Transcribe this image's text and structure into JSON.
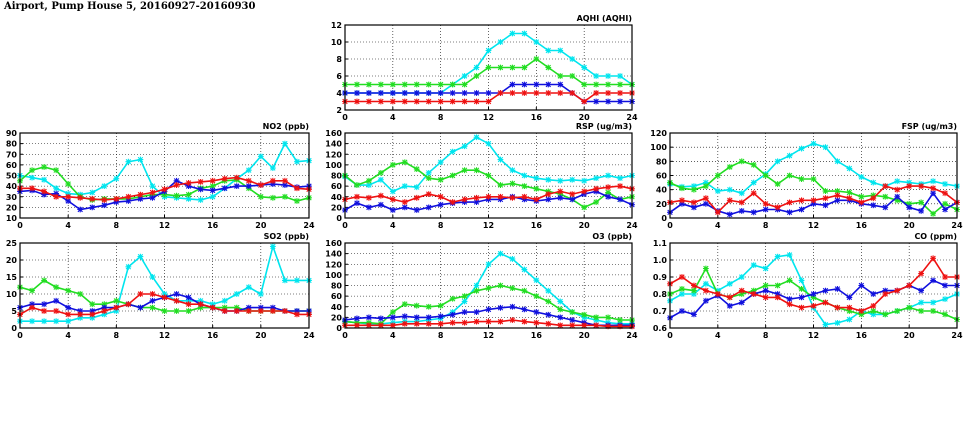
{
  "page": {
    "title": "Airport, Pump House 5, 20160927-20160930"
  },
  "colors": {
    "cyan": "#00e5ee",
    "green": "#22dd22",
    "blue": "#1010dd",
    "red": "#ee1111",
    "grid": "#000000"
  },
  "chart_data": [
    {
      "id": "aqhi",
      "type": "line",
      "title": "AQHI (AQHI)",
      "xlim": [
        0,
        24
      ],
      "ylim": [
        2,
        12
      ],
      "xticks": [
        "0",
        "4",
        "8",
        "12",
        "16",
        "20",
        "24"
      ],
      "yticks": [
        "2",
        "4",
        "6",
        "8",
        "10",
        "12"
      ],
      "x": [
        0,
        1,
        2,
        3,
        4,
        5,
        6,
        7,
        8,
        9,
        10,
        11,
        12,
        13,
        14,
        15,
        16,
        17,
        18,
        19,
        20,
        21,
        22,
        23,
        24
      ],
      "series": [
        {
          "color": "cyan",
          "values": [
            4,
            4,
            4,
            4,
            4,
            4,
            4,
            4,
            4,
            5,
            6,
            7,
            9,
            10,
            11,
            11,
            10,
            9,
            9,
            8,
            7,
            6,
            6,
            6,
            5
          ]
        },
        {
          "color": "green",
          "values": [
            5,
            5,
            5,
            5,
            5,
            5,
            5,
            5,
            5,
            5,
            5,
            6,
            7,
            7,
            7,
            7,
            8,
            7,
            6,
            6,
            5,
            5,
            5,
            5,
            5
          ]
        },
        {
          "color": "blue",
          "values": [
            4,
            4,
            4,
            4,
            4,
            4,
            4,
            4,
            4,
            4,
            4,
            4,
            4,
            4,
            5,
            5,
            5,
            5,
            5,
            4,
            3,
            3,
            3,
            3,
            3
          ]
        },
        {
          "color": "red",
          "values": [
            3,
            3,
            3,
            3,
            3,
            3,
            3,
            3,
            3,
            3,
            3,
            3,
            3,
            4,
            4,
            4,
            4,
            4,
            4,
            4,
            3,
            4,
            4,
            4,
            4
          ]
        }
      ]
    },
    {
      "id": "no2",
      "type": "line",
      "title": "NO2 (ppb)",
      "xlim": [
        0,
        24
      ],
      "ylim": [
        10,
        90
      ],
      "xticks": [
        "0",
        "4",
        "8",
        "12",
        "16",
        "20",
        "24"
      ],
      "yticks": [
        "10",
        "20",
        "30",
        "40",
        "50",
        "60",
        "70",
        "80",
        "90"
      ],
      "x": [
        0,
        1,
        2,
        3,
        4,
        5,
        6,
        7,
        8,
        9,
        10,
        11,
        12,
        13,
        14,
        15,
        16,
        17,
        18,
        19,
        20,
        21,
        22,
        23,
        24
      ],
      "series": [
        {
          "color": "cyan",
          "values": [
            50,
            48,
            46,
            38,
            33,
            32,
            34,
            40,
            47,
            63,
            65,
            40,
            30,
            29,
            28,
            27,
            30,
            38,
            47,
            55,
            68,
            57,
            80,
            63,
            64
          ]
        },
        {
          "color": "green",
          "values": [
            45,
            55,
            58,
            55,
            42,
            30,
            27,
            28,
            28,
            28,
            30,
            32,
            32,
            31,
            32,
            38,
            40,
            45,
            46,
            38,
            30,
            29,
            30,
            26,
            29
          ]
        },
        {
          "color": "blue",
          "values": [
            35,
            36,
            32,
            33,
            26,
            18,
            20,
            22,
            25,
            26,
            28,
            29,
            35,
            45,
            40,
            37,
            36,
            38,
            40,
            40,
            41,
            42,
            41,
            39,
            40
          ]
        },
        {
          "color": "red",
          "values": [
            38,
            38,
            35,
            30,
            30,
            29,
            28,
            27,
            28,
            30,
            32,
            34,
            37,
            41,
            43,
            44,
            45,
            47,
            48,
            45,
            41,
            45,
            45,
            38,
            37
          ]
        }
      ]
    },
    {
      "id": "rsp",
      "type": "line",
      "title": "RSP (ug/m3)",
      "xlim": [
        0,
        24
      ],
      "ylim": [
        0,
        160
      ],
      "xticks": [
        "0",
        "4",
        "8",
        "12",
        "16",
        "20",
        "24"
      ],
      "yticks": [
        "0",
        "20",
        "40",
        "60",
        "80",
        "100",
        "120",
        "140",
        "160"
      ],
      "x": [
        0,
        1,
        2,
        3,
        4,
        5,
        6,
        7,
        8,
        9,
        10,
        11,
        12,
        13,
        14,
        15,
        16,
        17,
        18,
        19,
        20,
        21,
        22,
        23,
        24
      ],
      "series": [
        {
          "color": "cyan",
          "values": [
            78,
            62,
            62,
            72,
            50,
            60,
            58,
            85,
            105,
            125,
            135,
            152,
            140,
            110,
            90,
            80,
            75,
            72,
            70,
            72,
            70,
            75,
            80,
            75,
            80
          ]
        },
        {
          "color": "green",
          "values": [
            80,
            62,
            70,
            85,
            100,
            105,
            92,
            75,
            72,
            80,
            90,
            90,
            80,
            62,
            65,
            60,
            55,
            50,
            45,
            35,
            20,
            30,
            48,
            35,
            40
          ]
        },
        {
          "color": "blue",
          "values": [
            15,
            28,
            20,
            25,
            15,
            20,
            15,
            20,
            25,
            28,
            30,
            30,
            35,
            35,
            40,
            35,
            32,
            35,
            38,
            35,
            45,
            50,
            40,
            35,
            25
          ]
        },
        {
          "color": "red",
          "values": [
            35,
            40,
            38,
            42,
            35,
            30,
            38,
            45,
            40,
            30,
            35,
            38,
            40,
            40,
            38,
            40,
            35,
            45,
            50,
            45,
            50,
            55,
            58,
            60,
            55
          ]
        }
      ]
    },
    {
      "id": "fsp",
      "type": "line",
      "title": "FSP (ug/m3)",
      "xlim": [
        0,
        24
      ],
      "ylim": [
        0,
        120
      ],
      "xticks": [
        "0",
        "4",
        "8",
        "12",
        "16",
        "20",
        "24"
      ],
      "yticks": [
        "0",
        "20",
        "40",
        "60",
        "80",
        "100",
        "120"
      ],
      "x": [
        0,
        1,
        2,
        3,
        4,
        5,
        6,
        7,
        8,
        9,
        10,
        11,
        12,
        13,
        14,
        15,
        16,
        17,
        18,
        19,
        20,
        21,
        22,
        23,
        24
      ],
      "series": [
        {
          "color": "cyan",
          "values": [
            48,
            44,
            45,
            50,
            38,
            40,
            35,
            50,
            62,
            80,
            88,
            98,
            105,
            100,
            80,
            70,
            58,
            50,
            45,
            52,
            50,
            48,
            52,
            48,
            45
          ]
        },
        {
          "color": "green",
          "values": [
            50,
            42,
            40,
            45,
            60,
            72,
            80,
            75,
            60,
            48,
            60,
            55,
            55,
            38,
            38,
            36,
            30,
            32,
            30,
            25,
            20,
            22,
            6,
            20,
            12
          ]
        },
        {
          "color": "blue",
          "values": [
            8,
            20,
            15,
            20,
            10,
            5,
            10,
            8,
            12,
            12,
            8,
            12,
            20,
            18,
            25,
            25,
            20,
            18,
            15,
            30,
            15,
            10,
            35,
            12,
            22
          ]
        },
        {
          "color": "red",
          "values": [
            22,
            25,
            22,
            28,
            8,
            25,
            22,
            35,
            20,
            15,
            22,
            25,
            25,
            28,
            32,
            28,
            22,
            28,
            45,
            40,
            45,
            45,
            42,
            35,
            22
          ]
        }
      ]
    },
    {
      "id": "so2",
      "type": "line",
      "title": "SO2 (ppb)",
      "xlim": [
        0,
        24
      ],
      "ylim": [
        0,
        25
      ],
      "xticks": [
        "0",
        "4",
        "8",
        "12",
        "16",
        "20",
        "24"
      ],
      "yticks": [
        "0",
        "5",
        "10",
        "15",
        "20",
        "25"
      ],
      "x": [
        0,
        1,
        2,
        3,
        4,
        5,
        6,
        7,
        8,
        9,
        10,
        11,
        12,
        13,
        14,
        15,
        16,
        17,
        18,
        19,
        20,
        21,
        22,
        23,
        24
      ],
      "series": [
        {
          "color": "cyan",
          "values": [
            2,
            2,
            2,
            2,
            2,
            3,
            3,
            4,
            5,
            18,
            21,
            15,
            10,
            8,
            8,
            8,
            7,
            8,
            10,
            12,
            10,
            24,
            14,
            14,
            14
          ]
        },
        {
          "color": "green",
          "values": [
            12,
            11,
            14,
            12,
            11,
            10,
            7,
            7,
            8,
            7,
            6,
            6,
            5,
            5,
            5,
            6,
            6,
            6,
            6,
            5,
            5,
            5,
            5,
            5,
            5
          ]
        },
        {
          "color": "blue",
          "values": [
            6,
            7,
            7,
            8,
            6,
            5,
            5,
            6,
            6,
            7,
            6,
            8,
            9,
            10,
            9,
            7,
            6,
            5,
            5,
            6,
            6,
            6,
            5,
            5,
            5
          ]
        },
        {
          "color": "red",
          "values": [
            4,
            6,
            5,
            5,
            4,
            4,
            4,
            5,
            6,
            7,
            10,
            10,
            9,
            8,
            7,
            7,
            6,
            5,
            5,
            5,
            5,
            5,
            5,
            4,
            4
          ]
        }
      ]
    },
    {
      "id": "o3",
      "type": "line",
      "title": "O3 (ppb)",
      "xlim": [
        0,
        24
      ],
      "ylim": [
        0,
        160
      ],
      "xticks": [
        "0",
        "4",
        "8",
        "12",
        "16",
        "20",
        "24"
      ],
      "yticks": [
        "0",
        "20",
        "40",
        "60",
        "80",
        "100",
        "120",
        "140",
        "160"
      ],
      "x": [
        0,
        1,
        2,
        3,
        4,
        5,
        6,
        7,
        8,
        9,
        10,
        11,
        12,
        13,
        14,
        15,
        16,
        17,
        18,
        19,
        20,
        21,
        22,
        23,
        24
      ],
      "series": [
        {
          "color": "cyan",
          "values": [
            12,
            10,
            8,
            8,
            10,
            12,
            12,
            15,
            18,
            30,
            50,
            80,
            120,
            140,
            130,
            110,
            90,
            70,
            50,
            30,
            20,
            15,
            10,
            8,
            8
          ]
        },
        {
          "color": "green",
          "values": [
            12,
            10,
            10,
            8,
            30,
            45,
            42,
            40,
            42,
            55,
            60,
            70,
            75,
            80,
            75,
            70,
            60,
            50,
            35,
            30,
            25,
            20,
            20,
            15,
            15
          ]
        },
        {
          "color": "blue",
          "values": [
            15,
            18,
            20,
            18,
            20,
            22,
            20,
            20,
            22,
            25,
            30,
            30,
            35,
            38,
            40,
            35,
            30,
            25,
            20,
            15,
            10,
            5,
            5,
            5,
            5
          ]
        },
        {
          "color": "red",
          "values": [
            5,
            5,
            5,
            5,
            5,
            8,
            8,
            8,
            8,
            10,
            10,
            12,
            12,
            12,
            15,
            12,
            10,
            8,
            5,
            5,
            5,
            5,
            3,
            3,
            3
          ]
        }
      ]
    },
    {
      "id": "co",
      "type": "line",
      "title": "CO (ppm)",
      "xlim": [
        0,
        24
      ],
      "ylim": [
        0.6,
        1.1
      ],
      "xticks": [
        "0",
        "4",
        "8",
        "12",
        "16",
        "20",
        "24"
      ],
      "yticks": [
        "0.6",
        "0.7",
        "0.8",
        "0.9",
        "1.0",
        "1.1"
      ],
      "x": [
        0,
        1,
        2,
        3,
        4,
        5,
        6,
        7,
        8,
        9,
        10,
        11,
        12,
        13,
        14,
        15,
        16,
        17,
        18,
        19,
        20,
        21,
        22,
        23,
        24
      ],
      "series": [
        {
          "color": "cyan",
          "values": [
            0.76,
            0.8,
            0.8,
            0.86,
            0.82,
            0.86,
            0.9,
            0.97,
            0.95,
            1.02,
            1.03,
            0.88,
            0.72,
            0.62,
            0.63,
            0.65,
            0.7,
            0.68,
            0.68,
            0.7,
            0.72,
            0.75,
            0.75,
            0.77,
            0.8
          ]
        },
        {
          "color": "green",
          "values": [
            0.8,
            0.83,
            0.82,
            0.95,
            0.8,
            0.78,
            0.8,
            0.82,
            0.85,
            0.85,
            0.88,
            0.83,
            0.78,
            0.75,
            0.72,
            0.7,
            0.68,
            0.7,
            0.68,
            0.7,
            0.72,
            0.7,
            0.7,
            0.68,
            0.65
          ]
        },
        {
          "color": "blue",
          "values": [
            0.66,
            0.7,
            0.68,
            0.76,
            0.79,
            0.73,
            0.75,
            0.8,
            0.82,
            0.8,
            0.77,
            0.78,
            0.8,
            0.82,
            0.83,
            0.78,
            0.85,
            0.8,
            0.82,
            0.82,
            0.85,
            0.82,
            0.88,
            0.85,
            0.85
          ]
        },
        {
          "color": "red",
          "values": [
            0.86,
            0.9,
            0.85,
            0.82,
            0.8,
            0.78,
            0.82,
            0.8,
            0.78,
            0.78,
            0.74,
            0.72,
            0.73,
            0.75,
            0.72,
            0.72,
            0.7,
            0.73,
            0.8,
            0.82,
            0.85,
            0.92,
            1.01,
            0.9,
            0.9
          ]
        }
      ]
    }
  ]
}
